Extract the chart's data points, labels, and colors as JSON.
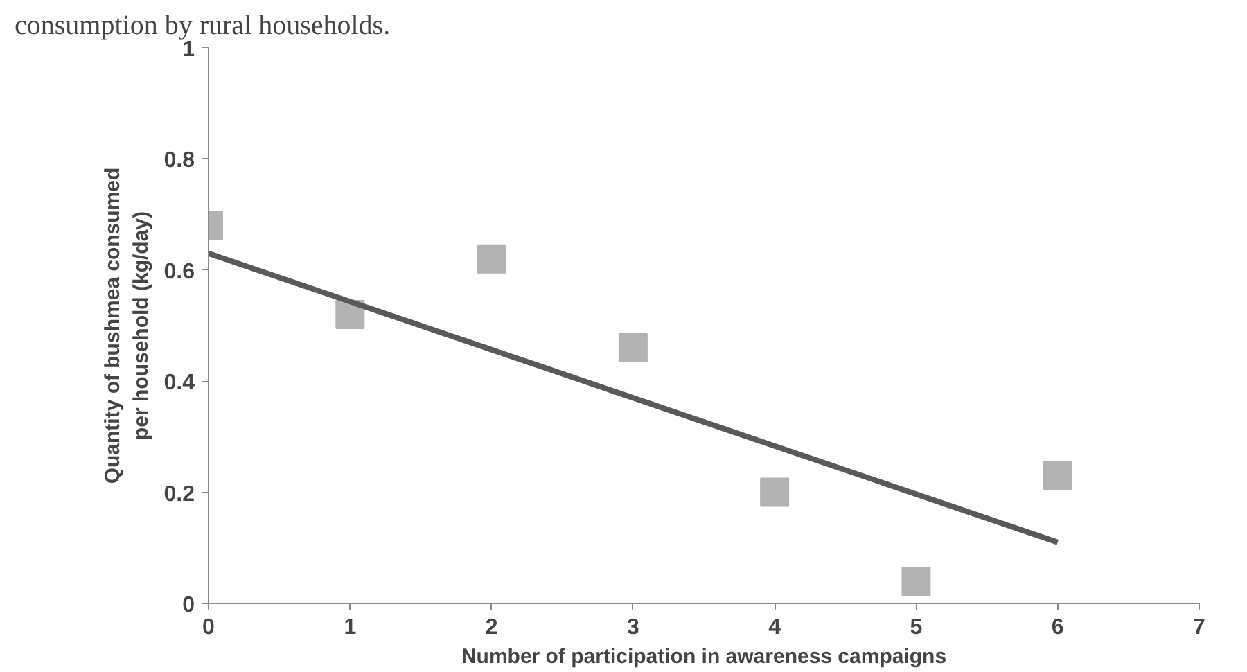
{
  "chart_data": {
    "type": "scatter",
    "title": "consumption by rural households.",
    "xlabel": "Number of participation in awareness campaigns",
    "ylabel": "Quantity of bushmea consumed\nper household (kg/day)",
    "xlim": [
      0,
      7
    ],
    "xticks": [
      0,
      1,
      2,
      3,
      4,
      5,
      6,
      7
    ],
    "ylim": [
      0,
      1
    ],
    "yticks": [
      0,
      0.2,
      0.4,
      0.6,
      0.8,
      1
    ],
    "grid": false,
    "series": [
      {
        "marker": "square",
        "color": "#b3b3b3",
        "x": [
          0,
          1,
          2,
          3,
          4,
          5,
          6
        ],
        "values": [
          0.68,
          0.52,
          0.62,
          0.46,
          0.2,
          0.04,
          0.23
        ]
      },
      {
        "type": "line",
        "marker": "none",
        "line_style": "solid",
        "color": "#595959",
        "x": [
          0,
          6
        ],
        "values": [
          0.63,
          0.11
        ]
      }
    ]
  }
}
